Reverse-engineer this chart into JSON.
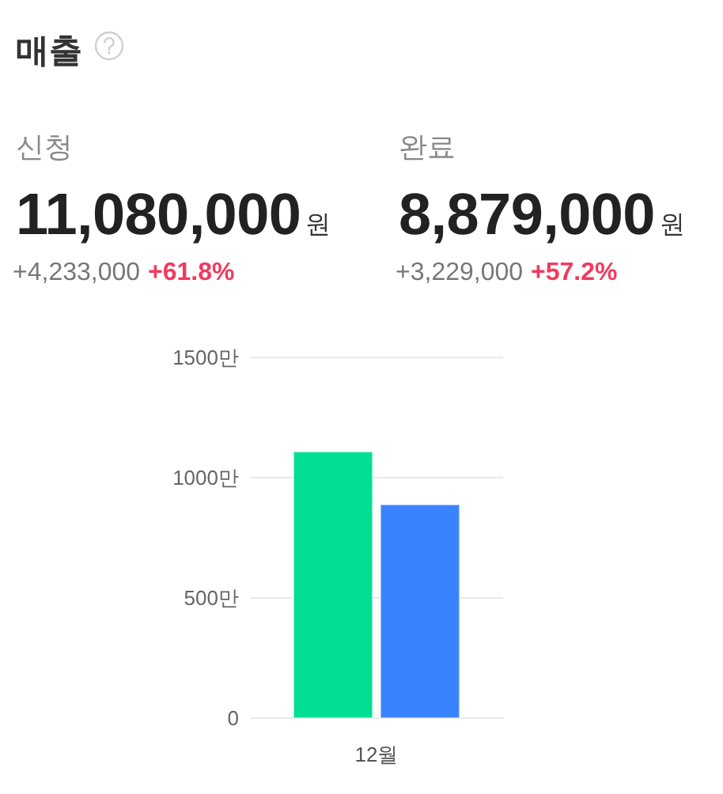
{
  "chart_data": [
    {
      "type": "other",
      "title": "매출",
      "annotations": [
        "신청",
        "11,080,000",
        "원",
        "+4,233,000",
        "+61.8%",
        "완료",
        "8,879,000",
        "원",
        "+3,229,000",
        "+57.2%"
      ]
    },
    {
      "type": "bar",
      "categories": [
        "12월"
      ],
      "series": [
        {
          "color": "#00de93",
          "values": [
            1108
          ]
        },
        {
          "color": "#3a83ff",
          "values": [
            888
          ]
        }
      ],
      "ylim": [
        0,
        1500
      ],
      "yticks": [
        0,
        {
          "value": 500,
          "label": "500만"
        },
        {
          "value": 1000,
          "label": "1000만"
        },
        {
          "value": 1500,
          "label": "1500만"
        }
      ],
      "grid": "y"
    }
  ]
}
